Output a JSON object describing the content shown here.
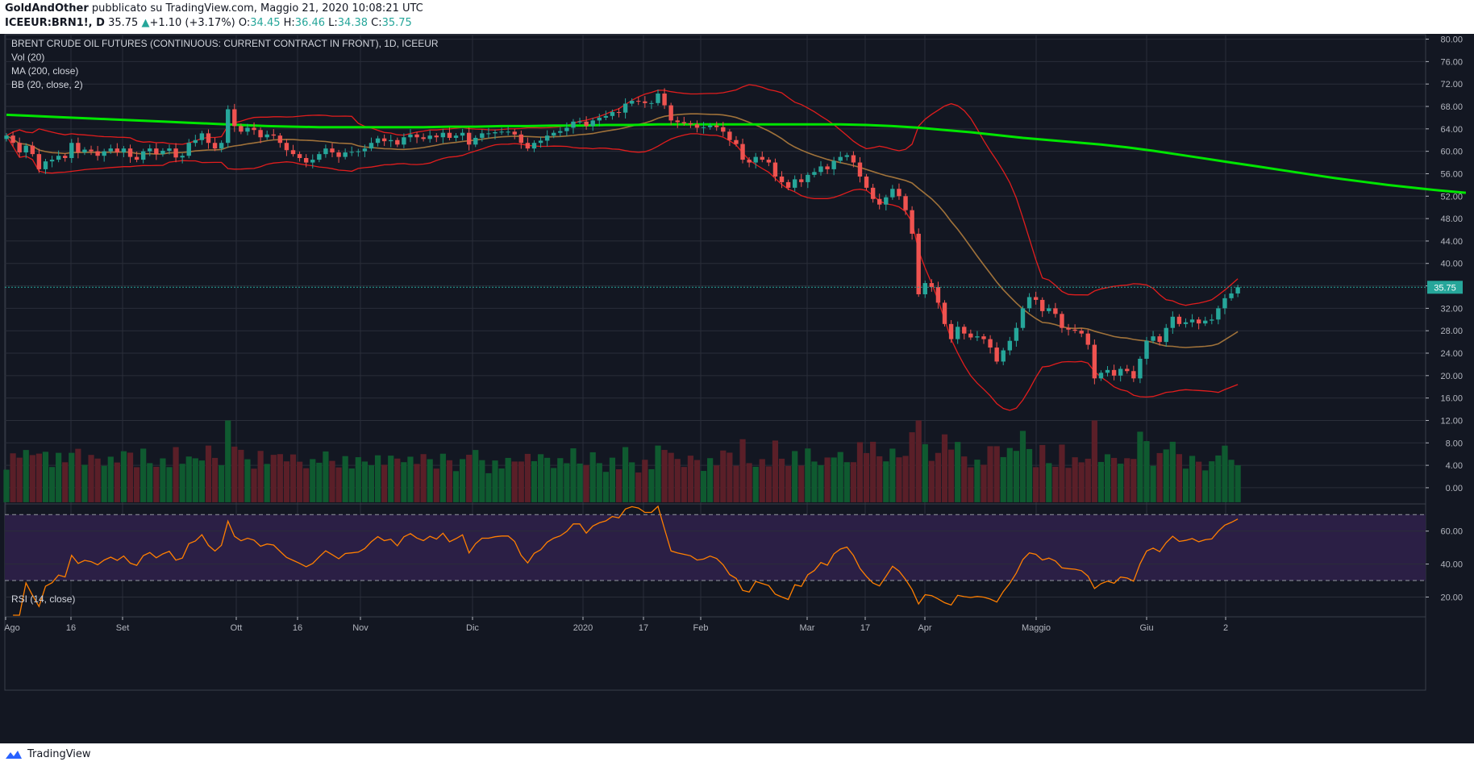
{
  "header": {
    "author": "GoldAndOther",
    "published_text": " pubblicato su TradingView.com, Maggio 21, 2020 10:08:21 UTC",
    "symbol": "ICEEUR:BRN1!, D",
    "last": "35.75",
    "change_arrow": "▲",
    "change": "+1.10 (+3.17%)",
    "o_label": "O:",
    "o_val": "34.45",
    "h_label": "H:",
    "h_val": "36.46",
    "l_label": "L:",
    "l_val": "34.38",
    "c_label": "C:",
    "c_val": "35.75"
  },
  "legend": {
    "title": "BRENT CRUDE OIL FUTURES (CONTINUOUS: CURRENT CONTRACT IN FRONT), 1D, ICEEUR",
    "vol": "Vol (20)",
    "ma": "MA (200, close)",
    "bb": "BB (20, close, 2)",
    "rsi": "RSI (14, close)"
  },
  "footer": {
    "brand": "TradingView"
  },
  "colors": {
    "background": "#131722",
    "grid": "#2a2e39",
    "text": "#b2b5be",
    "up": "#26a69a",
    "down": "#ef5350",
    "ma200": "#00e600",
    "bb_band": "#e01d1d",
    "bb_basis": "#a0723a",
    "rsi_line": "#ff7f00",
    "rsi_fill": "#2b1f45",
    "vol_up": "#0f5a30",
    "vol_down": "#5a1f28",
    "price_label": "#26a69a"
  },
  "chart_data": {
    "type": "candlestick",
    "title": "BRENT CRUDE OIL FUTURES (CONTINUOUS: CURRENT CONTRACT IN FRONT), 1D, ICEEUR",
    "last_price": 35.75,
    "last_price_label": "35.75",
    "price_axis": {
      "ylim": [
        -2.6,
        80.8
      ],
      "ticks": [
        "80.00",
        "76.00",
        "72.00",
        "68.00",
        "64.00",
        "60.00",
        "56.00",
        "52.00",
        "48.00",
        "44.00",
        "40.00",
        "36.00",
        "32.00",
        "28.00",
        "24.00",
        "20.00",
        "16.00",
        "12.00",
        "8.00",
        "4.00",
        "0.00"
      ]
    },
    "rsi_axis": {
      "ylim": [
        8,
        76
      ],
      "ticks": [
        "60.00",
        "40.00",
        "20.00"
      ],
      "overbought": 70,
      "oversold": 30
    },
    "x_labels": [
      "Ago",
      "16",
      "Set",
      "Ott",
      "16",
      "Nov",
      "Dic",
      "2020",
      "17",
      "Feb",
      "Mar",
      "17",
      "Apr",
      "Maggio",
      "Giu",
      "2"
    ],
    "closes": [
      62.8,
      61.5,
      59.8,
      61.0,
      59.5,
      56.8,
      58.2,
      58.5,
      59.2,
      58.8,
      61.5,
      59.8,
      60.3,
      60.0,
      59.2,
      60.0,
      60.5,
      59.8,
      60.5,
      59.0,
      58.5,
      60.0,
      60.5,
      59.5,
      60.1,
      60.5,
      58.9,
      59.2,
      61.5,
      62.0,
      63.2,
      61.5,
      60.5,
      61.5,
      67.5,
      64.5,
      63.5,
      64.2,
      63.8,
      62.5,
      63.0,
      62.8,
      61.5,
      60.2,
      59.5,
      58.8,
      58.0,
      58.5,
      59.5,
      60.5,
      59.8,
      59.0,
      59.8,
      59.9,
      60.0,
      60.5,
      61.5,
      62.3,
      61.8,
      62.0,
      61.2,
      62.5,
      63.0,
      62.5,
      62.2,
      62.8,
      62.5,
      63.3,
      62.4,
      62.8,
      63.3,
      61.2,
      62.4,
      63.2,
      63.2,
      63.4,
      63.5,
      63.5,
      63.0,
      61.5,
      60.5,
      61.5,
      61.9,
      62.8,
      63.3,
      63.6,
      64.2,
      65.3,
      65.3,
      64.5,
      65.5,
      66.0,
      66.3,
      67.0,
      66.9,
      68.5,
      69.0,
      68.9,
      68.6,
      68.6,
      70.3,
      68.2,
      65.5,
      65.2,
      65.0,
      64.8,
      64.2,
      64.3,
      64.6,
      64.3,
      63.5,
      62.0,
      61.3,
      58.5,
      58.0,
      59.0,
      58.5,
      58.0,
      55.5,
      54.5,
      53.5,
      55.0,
      54.5,
      55.8,
      56.3,
      57.3,
      56.8,
      58.3,
      59.0,
      59.3,
      58.0,
      55.5,
      53.5,
      51.5,
      50.5,
      51.8,
      53.3,
      52.0,
      49.5,
      45.3,
      34.5,
      36.5,
      35.8,
      33.0,
      29.2,
      26.5,
      28.7,
      27.5,
      26.8,
      27.0,
      26.5,
      25.0,
      22.5,
      24.5,
      26.2,
      28.5,
      32.0,
      34.0,
      33.5,
      31.5,
      32.0,
      31.0,
      28.5,
      28.2,
      28.0,
      27.5,
      25.5,
      19.5,
      20.5,
      21.0,
      20.0,
      21.2,
      20.8,
      19.5,
      23.0,
      26.2,
      27.0,
      26.0,
      28.5,
      30.5,
      29.2,
      29.5,
      30.0,
      29.3,
      29.8,
      30.0,
      32.0,
      33.8,
      34.65,
      35.75
    ],
    "ma200": [
      66.5,
      66.3,
      66.1,
      65.9,
      65.7,
      65.5,
      65.3,
      65.1,
      64.9,
      64.7,
      64.5,
      64.4,
      64.3,
      64.3,
      64.3,
      64.3,
      64.3,
      64.4,
      64.4,
      64.5,
      64.5,
      64.6,
      64.6,
      64.7,
      64.7,
      64.8,
      64.8,
      64.8,
      64.8,
      64.8,
      64.8,
      64.8,
      64.8,
      64.7,
      64.5,
      64.2,
      63.8,
      63.4,
      62.9,
      62.4,
      62.0,
      61.6,
      61.2,
      60.7,
      60.1,
      59.4,
      58.7,
      58.0,
      57.3,
      56.6,
      55.9,
      55.2,
      54.6,
      54.0,
      53.5,
      53.0,
      52.6
    ],
    "ma200_dates": [
      0,
      4,
      8,
      12,
      16,
      20,
      24,
      28,
      32,
      36,
      40,
      44,
      48,
      52,
      56,
      60,
      64,
      68,
      72,
      76,
      80,
      84,
      88,
      92,
      96,
      100,
      104,
      108,
      112,
      116,
      120,
      124,
      128,
      132,
      136,
      140,
      144,
      148,
      152,
      156,
      160,
      164,
      168,
      172,
      176,
      180,
      184,
      188,
      192,
      196,
      200,
      204,
      208,
      212,
      216,
      220,
      224
    ]
  }
}
